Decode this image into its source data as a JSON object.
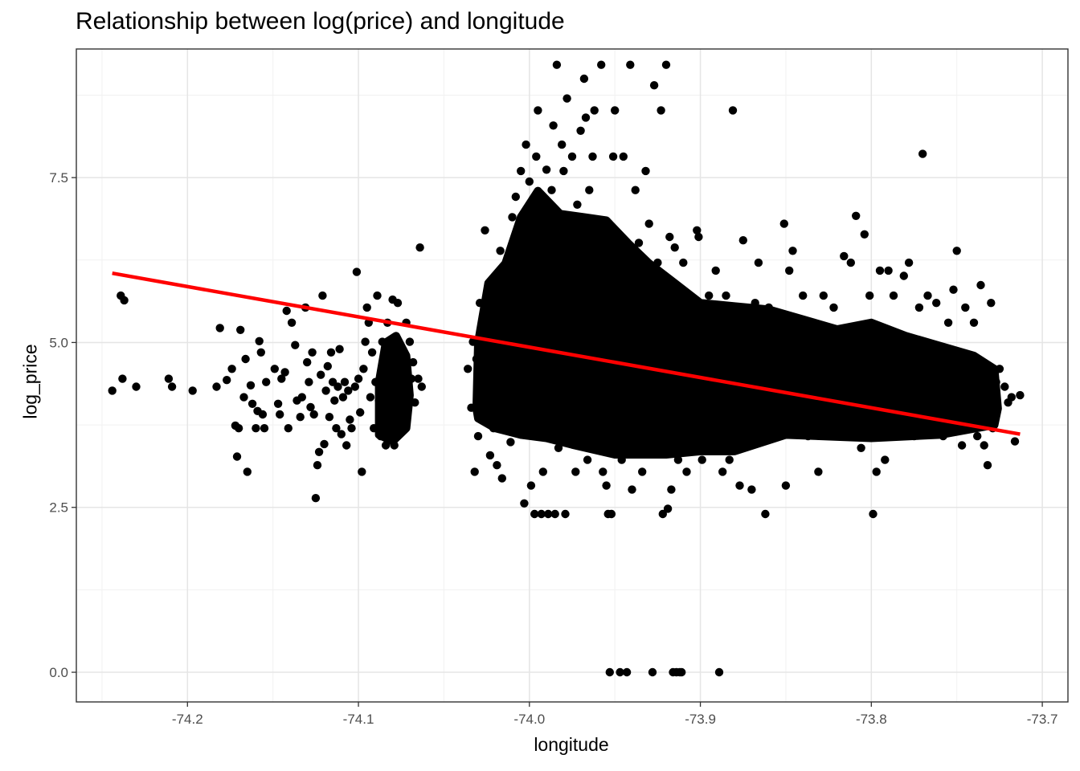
{
  "chart_data": {
    "type": "scatter",
    "title": "Relationship between log(price) and longitude",
    "xlabel": "longitude",
    "ylabel": "log_price",
    "xlim": [
      -74.265,
      -73.685
    ],
    "ylim": [
      -0.45,
      9.45
    ],
    "x_ticks": [
      -74.2,
      -74.1,
      -74.0,
      -73.9,
      -73.8,
      -73.7
    ],
    "x_tick_labels": [
      "-74.2",
      "-74.1",
      "-74.0",
      "-73.9",
      "-73.8",
      "-73.7"
    ],
    "y_ticks": [
      0.0,
      2.5,
      5.0,
      7.5
    ],
    "y_tick_labels": [
      "0.0",
      "2.5",
      "5.0",
      "7.5"
    ],
    "grid": true,
    "legend": "none",
    "point_color": "#000000",
    "series": [
      {
        "type": "scatter",
        "points": [
          [
            -74.244,
            4.27
          ],
          [
            -74.239,
            5.71
          ],
          [
            -74.237,
            5.64
          ],
          [
            -74.238,
            4.45
          ],
          [
            -74.23,
            4.33
          ],
          [
            -74.211,
            4.45
          ],
          [
            -74.209,
            4.33
          ],
          [
            -74.197,
            4.27
          ],
          [
            -74.183,
            4.33
          ],
          [
            -74.181,
            5.22
          ],
          [
            -74.177,
            4.43
          ],
          [
            -74.174,
            4.6
          ],
          [
            -74.172,
            3.74
          ],
          [
            -74.171,
            3.27
          ],
          [
            -74.17,
            3.7
          ],
          [
            -74.169,
            5.19
          ],
          [
            -74.167,
            4.17
          ],
          [
            -74.166,
            4.75
          ],
          [
            -74.165,
            3.04
          ],
          [
            -74.163,
            4.35
          ],
          [
            -74.162,
            4.07
          ],
          [
            -74.16,
            3.7
          ],
          [
            -74.159,
            3.96
          ],
          [
            -74.158,
            5.02
          ],
          [
            -74.157,
            4.85
          ],
          [
            -74.156,
            3.91
          ],
          [
            -74.155,
            3.7
          ],
          [
            -74.154,
            4.4
          ],
          [
            -74.149,
            4.6
          ],
          [
            -74.147,
            4.07
          ],
          [
            -74.146,
            3.91
          ],
          [
            -74.145,
            4.45
          ],
          [
            -74.143,
            4.55
          ],
          [
            -74.142,
            5.48
          ],
          [
            -74.141,
            3.7
          ],
          [
            -74.139,
            5.3
          ],
          [
            -74.137,
            4.96
          ],
          [
            -74.136,
            4.12
          ],
          [
            -74.134,
            3.87
          ],
          [
            -74.133,
            4.17
          ],
          [
            -74.131,
            5.53
          ],
          [
            -74.13,
            4.7
          ],
          [
            -74.129,
            4.4
          ],
          [
            -74.128,
            4.02
          ],
          [
            -74.127,
            4.85
          ],
          [
            -74.126,
            3.91
          ],
          [
            -74.125,
            2.64
          ],
          [
            -74.124,
            3.14
          ],
          [
            -74.123,
            3.34
          ],
          [
            -74.122,
            4.51
          ],
          [
            -74.121,
            5.71
          ],
          [
            -74.12,
            3.46
          ],
          [
            -74.119,
            4.27
          ],
          [
            -74.118,
            4.64
          ],
          [
            -74.117,
            3.87
          ],
          [
            -74.116,
            4.85
          ],
          [
            -74.115,
            4.4
          ],
          [
            -74.114,
            4.12
          ],
          [
            -74.113,
            3.7
          ],
          [
            -74.112,
            4.33
          ],
          [
            -74.111,
            4.9
          ],
          [
            -74.11,
            3.61
          ],
          [
            -74.109,
            4.17
          ],
          [
            -74.108,
            4.4
          ],
          [
            -74.107,
            3.44
          ],
          [
            -74.106,
            4.27
          ],
          [
            -74.105,
            3.83
          ],
          [
            -74.104,
            3.7
          ],
          [
            -74.102,
            4.33
          ],
          [
            -74.101,
            6.07
          ],
          [
            -74.1,
            4.45
          ],
          [
            -74.099,
            3.94
          ],
          [
            -74.098,
            3.04
          ],
          [
            -74.097,
            4.6
          ],
          [
            -74.096,
            5.01
          ],
          [
            -74.095,
            5.53
          ],
          [
            -74.094,
            5.3
          ],
          [
            -74.093,
            4.17
          ],
          [
            -74.092,
            4.85
          ],
          [
            -74.091,
            3.7
          ],
          [
            -74.09,
            4.4
          ],
          [
            -74.089,
            5.71
          ],
          [
            -74.088,
            4.12
          ],
          [
            -74.087,
            3.58
          ],
          [
            -74.086,
            5.01
          ],
          [
            -74.085,
            4.6
          ],
          [
            -74.084,
            3.44
          ],
          [
            -74.083,
            5.3
          ],
          [
            -74.082,
            4.27
          ],
          [
            -74.081,
            4.75
          ],
          [
            -74.08,
            5.65
          ],
          [
            -74.079,
            3.44
          ],
          [
            -74.078,
            4.4
          ],
          [
            -74.077,
            5.6
          ],
          [
            -74.076,
            4.9
          ],
          [
            -74.075,
            3.91
          ],
          [
            -74.074,
            4.17
          ],
          [
            -74.073,
            4.6
          ],
          [
            -74.072,
            5.3
          ],
          [
            -74.071,
            4.33
          ],
          [
            -74.07,
            5.01
          ],
          [
            -74.069,
            4.45
          ],
          [
            -74.068,
            4.7
          ],
          [
            -74.067,
            4.09
          ],
          [
            -74.065,
            4.45
          ],
          [
            -74.064,
            6.44
          ],
          [
            -74.063,
            4.33
          ],
          [
            -74.036,
            4.6
          ],
          [
            -74.034,
            4.01
          ],
          [
            -74.033,
            5.01
          ],
          [
            -74.032,
            3.04
          ],
          [
            -74.031,
            4.75
          ],
          [
            -74.03,
            3.58
          ],
          [
            -74.029,
            5.6
          ],
          [
            -74.028,
            3.91
          ],
          [
            -74.027,
            4.4
          ],
          [
            -74.026,
            6.7
          ],
          [
            -74.025,
            4.17
          ],
          [
            -74.024,
            5.53
          ],
          [
            -74.023,
            3.29
          ],
          [
            -74.022,
            4.85
          ],
          [
            -74.021,
            3.7
          ],
          [
            -74.02,
            5.22
          ],
          [
            -74.019,
            3.14
          ],
          [
            -74.018,
            4.45
          ],
          [
            -74.017,
            6.39
          ],
          [
            -74.016,
            2.94
          ],
          [
            -74.015,
            5.3
          ],
          [
            -74.014,
            3.87
          ],
          [
            -74.013,
            6.21
          ],
          [
            -74.012,
            4.6
          ],
          [
            -74.011,
            3.49
          ],
          [
            -74.01,
            6.9
          ],
          [
            -74.009,
            4.25
          ],
          [
            -74.008,
            7.21
          ],
          [
            -74.007,
            5.71
          ],
          [
            -74.006,
            3.7
          ],
          [
            -74.005,
            7.6
          ],
          [
            -74.004,
            5.01
          ],
          [
            -74.003,
            2.56
          ],
          [
            -74.002,
            8.0
          ],
          [
            -74.001,
            4.33
          ],
          [
            -74.0,
            7.44
          ],
          [
            -73.999,
            2.83
          ],
          [
            -73.998,
            6.21
          ],
          [
            -73.997,
            2.4
          ],
          [
            -73.996,
            7.82
          ],
          [
            -73.995,
            8.52
          ],
          [
            -73.994,
            4.6
          ],
          [
            -73.993,
            2.4
          ],
          [
            -73.992,
            3.04
          ],
          [
            -73.991,
            6.51
          ],
          [
            -73.99,
            7.62
          ],
          [
            -73.989,
            2.4
          ],
          [
            -73.988,
            5.3
          ],
          [
            -73.987,
            7.31
          ],
          [
            -73.986,
            8.29
          ],
          [
            -73.985,
            2.4
          ],
          [
            -73.984,
            9.21
          ],
          [
            -73.983,
            3.4
          ],
          [
            -73.982,
            6.8
          ],
          [
            -73.981,
            8.0
          ],
          [
            -73.98,
            7.6
          ],
          [
            -73.979,
            2.4
          ],
          [
            -73.978,
            8.7
          ],
          [
            -73.977,
            4.45
          ],
          [
            -73.975,
            7.82
          ],
          [
            -73.973,
            3.04
          ],
          [
            -73.972,
            7.09
          ],
          [
            -73.97,
            8.21
          ],
          [
            -73.968,
            9.0
          ],
          [
            -73.967,
            8.41
          ],
          [
            -73.966,
            3.22
          ],
          [
            -73.965,
            7.31
          ],
          [
            -73.963,
            7.82
          ],
          [
            -73.962,
            8.52
          ],
          [
            -73.96,
            6.7
          ],
          [
            -73.958,
            9.21
          ],
          [
            -73.957,
            3.04
          ],
          [
            -73.955,
            2.83
          ],
          [
            -73.954,
            2.4
          ],
          [
            -73.953,
            0.0
          ],
          [
            -73.952,
            2.4
          ],
          [
            -73.951,
            7.82
          ],
          [
            -73.95,
            8.52
          ],
          [
            -73.949,
            6.21
          ],
          [
            -73.947,
            0.0
          ],
          [
            -73.946,
            3.22
          ],
          [
            -73.945,
            7.82
          ],
          [
            -73.943,
            0.0
          ],
          [
            -73.941,
            9.21
          ],
          [
            -73.94,
            2.77
          ],
          [
            -73.938,
            7.31
          ],
          [
            -73.936,
            6.51
          ],
          [
            -73.934,
            3.04
          ],
          [
            -73.932,
            7.6
          ],
          [
            -73.93,
            6.8
          ],
          [
            -73.928,
            0.0
          ],
          [
            -73.927,
            8.9
          ],
          [
            -73.925,
            6.21
          ],
          [
            -73.923,
            8.52
          ],
          [
            -73.922,
            2.4
          ],
          [
            -73.921,
            3.4
          ],
          [
            -73.92,
            9.21
          ],
          [
            -73.919,
            2.48
          ],
          [
            -73.918,
            6.6
          ],
          [
            -73.917,
            2.77
          ],
          [
            -73.916,
            0.0
          ],
          [
            -73.915,
            6.44
          ],
          [
            -73.914,
            0.0
          ],
          [
            -73.913,
            3.22
          ],
          [
            -73.912,
            0.0
          ],
          [
            -73.911,
            0.0
          ],
          [
            -73.91,
            6.21
          ],
          [
            -73.908,
            3.04
          ],
          [
            -73.906,
            5.71
          ],
          [
            -73.904,
            3.4
          ],
          [
            -73.902,
            6.7
          ],
          [
            -73.901,
            6.6
          ],
          [
            -73.899,
            3.22
          ],
          [
            -73.897,
            5.3
          ],
          [
            -73.895,
            5.71
          ],
          [
            -73.893,
            3.58
          ],
          [
            -73.891,
            6.09
          ],
          [
            -73.889,
            0.0
          ],
          [
            -73.887,
            3.04
          ],
          [
            -73.885,
            5.71
          ],
          [
            -73.883,
            3.22
          ],
          [
            -73.881,
            8.52
          ],
          [
            -73.879,
            5.3
          ],
          [
            -73.877,
            2.83
          ],
          [
            -73.875,
            6.55
          ],
          [
            -73.872,
            3.58
          ],
          [
            -73.87,
            2.77
          ],
          [
            -73.868,
            5.6
          ],
          [
            -73.866,
            6.21
          ],
          [
            -73.864,
            3.7
          ],
          [
            -73.862,
            2.4
          ],
          [
            -73.86,
            5.53
          ],
          [
            -73.858,
            3.87
          ],
          [
            -73.856,
            5.3
          ],
          [
            -73.853,
            5.01
          ],
          [
            -73.851,
            6.8
          ],
          [
            -73.85,
            2.83
          ],
          [
            -73.848,
            6.09
          ],
          [
            -73.846,
            6.39
          ],
          [
            -73.843,
            3.7
          ],
          [
            -73.84,
            5.71
          ],
          [
            -73.837,
            3.58
          ],
          [
            -73.834,
            5.3
          ],
          [
            -73.831,
            3.04
          ],
          [
            -73.828,
            5.71
          ],
          [
            -73.825,
            3.87
          ],
          [
            -73.822,
            5.53
          ],
          [
            -73.819,
            3.58
          ],
          [
            -73.816,
            6.31
          ],
          [
            -73.814,
            3.7
          ],
          [
            -73.812,
            6.21
          ],
          [
            -73.809,
            6.92
          ],
          [
            -73.806,
            3.4
          ],
          [
            -73.804,
            6.64
          ],
          [
            -73.801,
            5.71
          ],
          [
            -73.799,
            2.4
          ],
          [
            -73.797,
            3.04
          ],
          [
            -73.795,
            6.09
          ],
          [
            -73.792,
            3.22
          ],
          [
            -73.79,
            6.09
          ],
          [
            -73.787,
            5.71
          ],
          [
            -73.784,
            3.7
          ],
          [
            -73.781,
            6.01
          ],
          [
            -73.778,
            6.21
          ],
          [
            -73.775,
            3.58
          ],
          [
            -73.772,
            5.53
          ],
          [
            -73.77,
            7.86
          ],
          [
            -73.767,
            5.71
          ],
          [
            -73.764,
            3.7
          ],
          [
            -73.762,
            5.6
          ],
          [
            -73.758,
            3.58
          ],
          [
            -73.755,
            5.3
          ],
          [
            -73.752,
            5.8
          ],
          [
            -73.75,
            6.39
          ],
          [
            -73.747,
            3.44
          ],
          [
            -73.745,
            5.53
          ],
          [
            -73.742,
            3.7
          ],
          [
            -73.74,
            5.3
          ],
          [
            -73.738,
            3.58
          ],
          [
            -73.736,
            5.87
          ],
          [
            -73.734,
            3.44
          ],
          [
            -73.732,
            3.14
          ],
          [
            -73.73,
            5.6
          ],
          [
            -73.729,
            3.7
          ],
          [
            -73.727,
            4.4
          ],
          [
            -73.725,
            4.6
          ],
          [
            -73.722,
            4.33
          ],
          [
            -73.72,
            4.09
          ],
          [
            -73.718,
            4.17
          ],
          [
            -73.716,
            3.5
          ],
          [
            -73.713,
            4.2
          ]
        ]
      },
      {
        "type": "line",
        "name": "",
        "color": "#ff0000",
        "points": [
          [
            -74.244,
            6.05
          ],
          [
            -73.713,
            3.61
          ]
        ]
      }
    ]
  }
}
